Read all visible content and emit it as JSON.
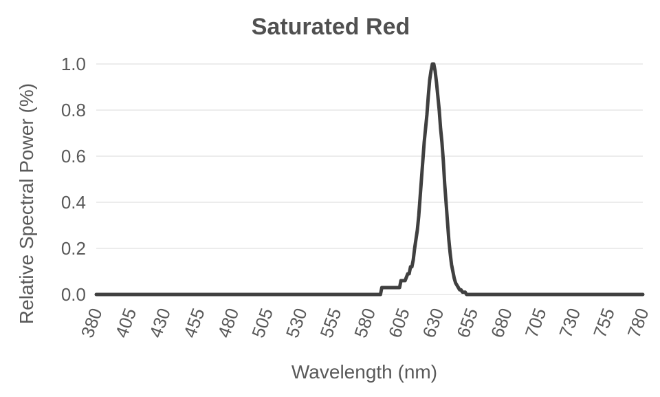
{
  "chart_data": {
    "type": "line",
    "title": "Saturated Red",
    "xlabel": "Wavelength (nm)",
    "ylabel": "Relative Spectral Power (%)",
    "xlim": [
      380,
      780
    ],
    "ylim": [
      0,
      1.0
    ],
    "x_ticks": [
      "380",
      "405",
      "430",
      "455",
      "480",
      "505",
      "530",
      "555",
      "580",
      "605",
      "630",
      "655",
      "680",
      "705",
      "730",
      "755",
      "780"
    ],
    "y_ticks": [
      "0.0",
      "0.2",
      "0.4",
      "0.6",
      "0.8",
      "1.0"
    ],
    "grid": true,
    "legend": false,
    "series": [
      {
        "color": "#404040",
        "x": [
          380,
          588,
          589,
          598,
          599,
          602,
          603,
          605,
          606,
          608,
          609,
          610,
          611,
          612,
          613,
          614,
          615,
          616,
          617,
          618,
          619,
          620,
          621,
          622,
          623,
          624,
          625,
          626,
          627,
          628,
          629,
          630,
          631,
          632,
          633,
          634,
          635,
          636,
          637,
          638,
          639,
          640,
          641,
          642,
          643,
          644,
          645,
          646,
          647,
          648,
          649,
          650,
          651,
          652,
          653,
          654,
          655,
          656,
          657,
          658,
          659,
          660,
          661,
          662,
          663,
          664,
          665,
          666,
          667,
          668,
          780
        ],
        "y": [
          0,
          0,
          0.03,
          0.03,
          0.03,
          0.03,
          0.06,
          0.06,
          0.06,
          0.09,
          0.09,
          0.12,
          0.12,
          0.15,
          0.2,
          0.24,
          0.28,
          0.34,
          0.42,
          0.5,
          0.58,
          0.66,
          0.72,
          0.78,
          0.86,
          0.93,
          0.97,
          1.0,
          1.0,
          0.97,
          0.92,
          0.86,
          0.8,
          0.72,
          0.66,
          0.58,
          0.48,
          0.4,
          0.32,
          0.24,
          0.18,
          0.13,
          0.1,
          0.07,
          0.05,
          0.04,
          0.03,
          0.02,
          0.02,
          0.01,
          0.01,
          0.01,
          0.0,
          0.0,
          0.0,
          0.0,
          0.0,
          0.0,
          0.0,
          0.0,
          0.0,
          0.0,
          0.0,
          0.0,
          0.0,
          0.0,
          0.0,
          0.0,
          0.0,
          0.0,
          0.0
        ]
      }
    ]
  }
}
